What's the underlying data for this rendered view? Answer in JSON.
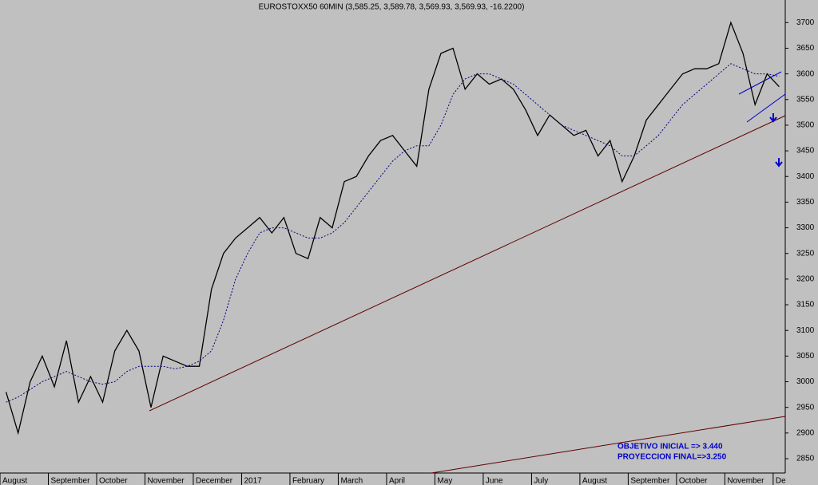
{
  "chart_data": {
    "type": "line",
    "title": "EUROSTOXX50 60MIN (3,585.25, 3,589.78, 3,569.93, 3,569.93, -16.2200)",
    "annotations": [
      "OBJETIVO INICIAL  => 3.440",
      "PROYECCION FINAL=>3.250"
    ],
    "categories": [
      "August",
      null,
      null,
      null,
      "September",
      null,
      null,
      null,
      "October",
      null,
      null,
      null,
      "November",
      null,
      null,
      null,
      "December",
      null,
      null,
      null,
      "2017",
      null,
      null,
      null,
      "February",
      null,
      null,
      null,
      "March",
      null,
      null,
      null,
      "April",
      null,
      null,
      null,
      "May",
      null,
      null,
      null,
      "June",
      null,
      null,
      null,
      "July",
      null,
      null,
      null,
      "August",
      null,
      null,
      null,
      "September",
      null,
      null,
      null,
      "October",
      null,
      null,
      null,
      "November",
      null,
      null,
      null,
      "De"
    ],
    "series": [
      {
        "color": "#000000",
        "style": "solid",
        "values": [
          2980,
          2900,
          3000,
          3050,
          2990,
          3080,
          2960,
          3010,
          2960,
          3060,
          3100,
          3060,
          2950,
          3050,
          3040,
          3030,
          3030,
          3180,
          3250,
          3280,
          3300,
          3320,
          3290,
          3320,
          3250,
          3240,
          3320,
          3300,
          3390,
          3400,
          3440,
          3470,
          3480,
          3450,
          3420,
          3570,
          3640,
          3650,
          3570,
          3600,
          3580,
          3590,
          3570,
          3530,
          3480,
          3520,
          3500,
          3480,
          3490,
          3440,
          3470,
          3390,
          3440,
          3510,
          3540,
          3570,
          3600,
          3610,
          3610,
          3620,
          3700,
          3640,
          3540,
          3600,
          3575
        ]
      },
      {
        "color": "#000080",
        "style": "dotted",
        "values": [
          2960,
          2970,
          2985,
          3000,
          3010,
          3020,
          3010,
          3000,
          2995,
          3000,
          3020,
          3030,
          3030,
          3030,
          3025,
          3030,
          3040,
          3060,
          3120,
          3200,
          3250,
          3290,
          3300,
          3300,
          3290,
          3280,
          3280,
          3290,
          3310,
          3340,
          3370,
          3400,
          3430,
          3450,
          3460,
          3460,
          3500,
          3560,
          3590,
          3600,
          3600,
          3590,
          3580,
          3560,
          3540,
          3520,
          3500,
          3490,
          3480,
          3470,
          3460,
          3440,
          3440,
          3460,
          3480,
          3510,
          3540,
          3560,
          3580,
          3600,
          3620,
          3610,
          3600,
          3600,
          3595
        ]
      }
    ],
    "ylim": [
      2822,
      3744
    ],
    "yticks": [
      2850,
      2900,
      2950,
      3000,
      3050,
      3100,
      3150,
      3200,
      3250,
      3300,
      3350,
      3400,
      3450,
      3500,
      3550,
      3600,
      3650,
      3700
    ],
    "axis_side": "right",
    "grid": false
  }
}
